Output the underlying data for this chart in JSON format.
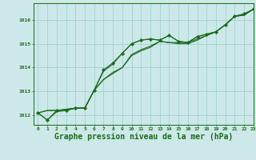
{
  "bg_color": "#cce8e8",
  "grid_color": "#99cccc",
  "line_color": "#1a6b1a",
  "marker_color": "#1a6b1a",
  "xlabel": "Graphe pression niveau de la mer (hPa)",
  "xlabel_fontsize": 7,
  "ylabel_ticks": [
    1012,
    1013,
    1014,
    1015,
    1016
  ],
  "xlim": [
    -0.5,
    23
  ],
  "ylim": [
    1011.6,
    1016.7
  ],
  "x": [
    0,
    1,
    2,
    3,
    4,
    5,
    6,
    7,
    8,
    9,
    10,
    11,
    12,
    13,
    14,
    15,
    16,
    17,
    18,
    19,
    20,
    21,
    22,
    23
  ],
  "series": [
    [
      1012.1,
      1011.8,
      1012.2,
      1012.2,
      1012.3,
      1012.3,
      1013.05,
      1013.9,
      1014.2,
      1014.6,
      1015.0,
      1015.15,
      1015.2,
      1015.15,
      1015.35,
      1015.1,
      1015.05,
      1015.3,
      1015.4,
      1015.5,
      1015.8,
      1016.15,
      1016.25,
      1016.45
    ],
    [
      1012.1,
      1012.2,
      1012.2,
      1012.25,
      1012.3,
      1012.3,
      1013.05,
      1013.5,
      1013.8,
      1014.0,
      1014.55,
      1014.75,
      1014.9,
      1015.1,
      1015.05,
      1015.05,
      1015.05,
      1015.2,
      1015.35,
      1015.5,
      1015.8,
      1016.15,
      1016.2,
      1016.45
    ],
    [
      1012.1,
      1012.2,
      1012.2,
      1012.25,
      1012.3,
      1012.3,
      1013.05,
      1013.5,
      1013.75,
      1014.0,
      1014.5,
      1014.7,
      1014.85,
      1015.1,
      1015.05,
      1015.0,
      1015.0,
      1015.15,
      1015.35,
      1015.5,
      1015.8,
      1016.15,
      1016.2,
      1016.45
    ],
    [
      1012.1,
      1011.8,
      1012.15,
      1012.2,
      1012.3,
      1012.3,
      1013.05,
      1013.85,
      1014.15,
      1014.6,
      1015.0,
      1015.15,
      1015.2,
      1015.15,
      1015.35,
      1015.1,
      1015.05,
      1015.3,
      1015.4,
      1015.5,
      1015.8,
      1016.15,
      1016.25,
      1016.45
    ]
  ],
  "has_markers": [
    true,
    false,
    false,
    false
  ],
  "xticks": [
    0,
    1,
    2,
    3,
    4,
    5,
    6,
    7,
    8,
    9,
    10,
    11,
    12,
    13,
    14,
    15,
    16,
    17,
    18,
    19,
    20,
    21,
    22,
    23
  ]
}
